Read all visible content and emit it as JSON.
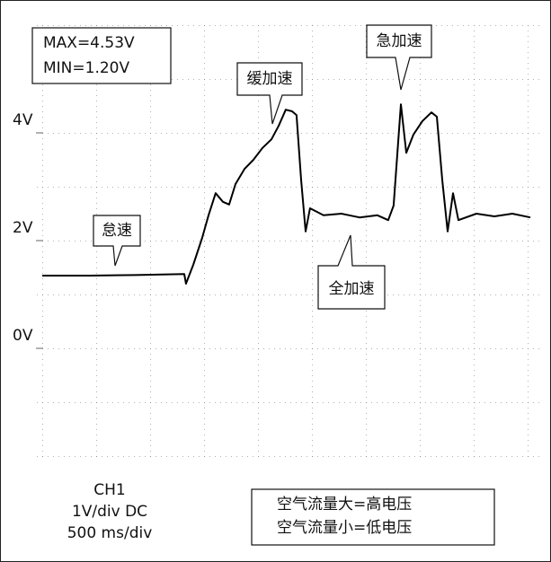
{
  "chart_data": {
    "type": "line",
    "x": [
      0,
      442,
      858,
      1317,
      1333,
      1400,
      1483,
      1542,
      1608,
      1675,
      1733,
      1792,
      1875,
      1958,
      2042,
      2125,
      2192,
      2258,
      2317,
      2358,
      2400,
      2442,
      2483,
      2608,
      2775,
      2942,
      3108,
      3208,
      3258,
      3292,
      3325,
      3375,
      3442,
      3525,
      3608,
      3658,
      3708,
      3758,
      3808,
      3858,
      4025,
      4192,
      4358,
      4525
    ],
    "series": [
      {
        "name": "CH1",
        "color": "#000000",
        "values": [
          1.35,
          1.35,
          1.36,
          1.38,
          1.2,
          1.55,
          2.05,
          2.47,
          2.88,
          2.72,
          2.67,
          3.05,
          3.33,
          3.5,
          3.72,
          3.88,
          4.13,
          4.43,
          4.4,
          4.33,
          3.13,
          2.17,
          2.6,
          2.47,
          2.5,
          2.43,
          2.47,
          2.38,
          2.65,
          3.6,
          4.53,
          3.63,
          3.97,
          4.22,
          4.38,
          4.3,
          3.13,
          2.17,
          2.88,
          2.38,
          2.5,
          2.45,
          2.5,
          2.43
        ]
      }
    ],
    "xlim": [
      -58,
      4650
    ],
    "ylim": [
      -2,
      6
    ],
    "yticks": [
      {
        "value": 0,
        "label": "0V"
      },
      {
        "value": 2,
        "label": "2V"
      },
      {
        "value": 4,
        "label": "4V"
      }
    ],
    "grid": true,
    "annotations": [
      "MAX=4.53V",
      "MIN=1.20V",
      "缓加速",
      "急加速",
      "怠速",
      "全加速",
      "1V/div DC",
      "500 ms/div",
      "空气流量大=高电压",
      "空气流量小=低电压"
    ]
  }
}
